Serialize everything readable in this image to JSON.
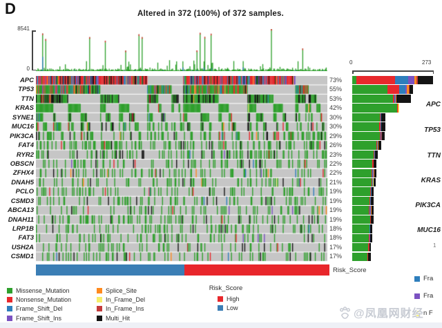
{
  "chart_data": {
    "type": "oncoprint",
    "panel_label": "D",
    "title": "Altered in 372 (100%) of 372 samples.",
    "n_samples": 372,
    "tmb_axis": {
      "min": 0,
      "max": 8541,
      "min_label": "0",
      "max_label": "8541"
    },
    "right_axis": {
      "min": 0,
      "max": 273,
      "min_label": "0",
      "max_label": "273"
    },
    "matrix_background": "#c6c6c6",
    "mutation_types": [
      {
        "name": "Missense_Mutation",
        "color": "#2ea02c"
      },
      {
        "name": "Nonsense_Mutation",
        "color": "#e8282c"
      },
      {
        "name": "Frame_Shift_Del",
        "color": "#2e7ebc"
      },
      {
        "name": "Frame_Shift_Ins",
        "color": "#7b52c1"
      },
      {
        "name": "Splice_Site",
        "color": "#ff8a1e"
      },
      {
        "name": "In_Frame_Del",
        "color": "#f6ee6a"
      },
      {
        "name": "In_Frame_Ins",
        "color": "#c43b3b"
      },
      {
        "name": "Multi_Hit",
        "color": "#141414"
      }
    ],
    "genes": [
      {
        "name": "APC",
        "pct": 73,
        "pct_label": "73%",
        "frac": [
          0.05,
          0.48,
          0.16,
          0.08,
          0.02,
          0.0,
          0.02,
          0.19
        ]
      },
      {
        "name": "TP53",
        "pct": 55,
        "pct_label": "55%",
        "frac": [
          0.58,
          0.19,
          0.1,
          0.02,
          0.04,
          0.0,
          0.01,
          0.06
        ]
      },
      {
        "name": "TTN",
        "pct": 53,
        "pct_label": "53%",
        "frac": [
          0.69,
          0.02,
          0.02,
          0.01,
          0.01,
          0.0,
          0.0,
          0.25
        ]
      },
      {
        "name": "KRAS",
        "pct": 42,
        "pct_label": "42%",
        "frac": [
          0.96,
          0.01,
          0.0,
          0.0,
          0.02,
          0.01,
          0.0,
          0.0
        ]
      },
      {
        "name": "SYNE1",
        "pct": 30,
        "pct_label": "30%",
        "frac": [
          0.82,
          0.03,
          0.02,
          0.01,
          0.0,
          0.0,
          0.0,
          0.12
        ]
      },
      {
        "name": "MUC16",
        "pct": 30,
        "pct_label": "30%",
        "frac": [
          0.81,
          0.03,
          0.03,
          0.0,
          0.01,
          0.0,
          0.0,
          0.12
        ]
      },
      {
        "name": "PIK3CA",
        "pct": 29,
        "pct_label": "29%",
        "frac": [
          0.86,
          0.02,
          0.02,
          0.0,
          0.01,
          0.0,
          0.01,
          0.08
        ]
      },
      {
        "name": "FAT4",
        "pct": 26,
        "pct_label": "26%",
        "frac": [
          0.83,
          0.04,
          0.02,
          0.0,
          0.01,
          0.0,
          0.0,
          0.1
        ]
      },
      {
        "name": "RYR2",
        "pct": 23,
        "pct_label": "23%",
        "frac": [
          0.84,
          0.02,
          0.02,
          0.01,
          0.0,
          0.0,
          0.0,
          0.11
        ]
      },
      {
        "name": "OBSCN",
        "pct": 22,
        "pct_label": "22%",
        "frac": [
          0.83,
          0.04,
          0.01,
          0.01,
          0.0,
          0.0,
          0.0,
          0.11
        ]
      },
      {
        "name": "ZFHX4",
        "pct": 22,
        "pct_label": "22%",
        "frac": [
          0.8,
          0.02,
          0.04,
          0.02,
          0.03,
          0.0,
          0.0,
          0.09
        ]
      },
      {
        "name": "DNAH5",
        "pct": 21,
        "pct_label": "21%",
        "frac": [
          0.84,
          0.03,
          0.01,
          0.0,
          0.02,
          0.01,
          0.0,
          0.09
        ]
      },
      {
        "name": "PCLO",
        "pct": 19,
        "pct_label": "19%",
        "frac": [
          0.86,
          0.03,
          0.02,
          0.0,
          0.0,
          0.0,
          0.0,
          0.09
        ]
      },
      {
        "name": "CSMD3",
        "pct": 19,
        "pct_label": "19%",
        "frac": [
          0.82,
          0.04,
          0.02,
          0.0,
          0.02,
          0.0,
          0.0,
          0.1
        ]
      },
      {
        "name": "ABCA13",
        "pct": 19,
        "pct_label": "19%",
        "frac": [
          0.8,
          0.03,
          0.03,
          0.02,
          0.03,
          0.0,
          0.0,
          0.09
        ]
      },
      {
        "name": "DNAH11",
        "pct": 19,
        "pct_label": "19%",
        "frac": [
          0.85,
          0.03,
          0.01,
          0.0,
          0.0,
          0.0,
          0.01,
          0.1
        ]
      },
      {
        "name": "LRP1B",
        "pct": 18,
        "pct_label": "18%",
        "frac": [
          0.85,
          0.01,
          0.03,
          0.0,
          0.0,
          0.0,
          0.0,
          0.11
        ]
      },
      {
        "name": "FAT3",
        "pct": 18,
        "pct_label": "18%",
        "frac": [
          0.84,
          0.03,
          0.01,
          0.02,
          0.0,
          0.0,
          0.0,
          0.1
        ]
      },
      {
        "name": "USH2A",
        "pct": 17,
        "pct_label": "17%",
        "frac": [
          0.84,
          0.04,
          0.01,
          0.0,
          0.0,
          0.0,
          0.01,
          0.1
        ]
      },
      {
        "name": "CSMD1",
        "pct": 17,
        "pct_label": "17%",
        "frac": [
          0.79,
          0.04,
          0.02,
          0.0,
          0.01,
          0.0,
          0.0,
          0.14
        ]
      }
    ],
    "risk_track": {
      "label": "Risk_Score",
      "groups": [
        {
          "name": "Low",
          "color": "#3b7eb5",
          "fraction": 0.506
        },
        {
          "name": "High",
          "color": "#e8262b",
          "fraction": 0.494
        }
      ]
    },
    "legend": {
      "risk_header": "Risk_Score",
      "risk_items": [
        {
          "label": "High",
          "color": "#e8282c"
        },
        {
          "label": "Low",
          "color": "#3b7eb5"
        }
      ]
    },
    "side_panel": {
      "gene_labels": [
        "APC",
        "TP53",
        "TTN",
        "KRAS",
        "PIK3CA",
        "MUC16"
      ],
      "partial_legend": [
        {
          "label": "Fra",
          "color": "#2e7ebc"
        },
        {
          "label": "Fra",
          "color": "#7b52c1"
        },
        {
          "label": "n F",
          "color": "#f6ee6a"
        }
      ],
      "fragment": "1"
    },
    "watermark": "@凤凰网财经"
  }
}
